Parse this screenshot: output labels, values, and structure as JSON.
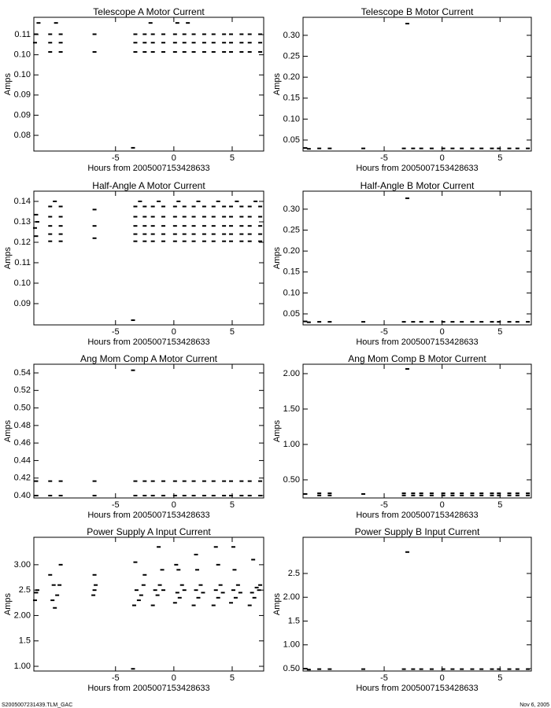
{
  "chart_data": [
    {
      "type": "scatter",
      "title": "Telescope A Motor Current",
      "xlabel": "Hours from 2005007153428633",
      "ylabel": "Amps",
      "color": "#000000",
      "xlim": [
        -12,
        7.7
      ],
      "xticks": [
        -5,
        0,
        5
      ],
      "ylim": [
        0.0811,
        0.1143
      ],
      "yticks": [
        0.11,
        {
          "value": 0.105,
          "label": "0.10"
        },
        {
          "value": 0.1,
          "label": "0.10"
        },
        {
          "value": 0.095,
          "label": "0.09"
        },
        0.09,
        {
          "value": 0.085,
          "label": "0.08"
        }
      ],
      "x": [
        -10.6,
        -9.7,
        -3.3,
        -2.5,
        -1.8,
        -0.9,
        0.1,
        0.9,
        1.7,
        2.6,
        3.4,
        4.3,
        4.9,
        5.8,
        6.5,
        7.4,
        -10.6,
        -9.7,
        -3.3,
        -2.5,
        -1.8,
        -0.9,
        0.1,
        0.9,
        1.7,
        2.6,
        3.4,
        4.3,
        4.9,
        5.8,
        6.5,
        7.4,
        -10.6,
        -9.7,
        -3.3,
        -2.5,
        -1.8,
        -0.9,
        0.1,
        0.9,
        1.7,
        2.6,
        3.4,
        4.3,
        4.9,
        5.8,
        6.5,
        7.4,
        -11.8,
        -11.6,
        -11.9,
        -6.8,
        -6.8,
        -3.5,
        -2.0,
        0.3,
        1.2,
        -10.1
      ],
      "values": [
        0.1101,
        0.1101,
        0.1101,
        0.1101,
        0.1101,
        0.1101,
        0.1101,
        0.1101,
        0.1101,
        0.1101,
        0.1101,
        0.1101,
        0.1101,
        0.1101,
        0.1101,
        0.1101,
        0.108,
        0.108,
        0.108,
        0.108,
        0.108,
        0.108,
        0.108,
        0.108,
        0.108,
        0.108,
        0.108,
        0.108,
        0.108,
        0.108,
        0.108,
        0.108,
        0.1057,
        0.1057,
        0.1057,
        0.1057,
        0.1057,
        0.1057,
        0.1057,
        0.1057,
        0.1057,
        0.1057,
        0.1057,
        0.1057,
        0.1057,
        0.1057,
        0.1057,
        0.1057,
        0.1101,
        0.1129,
        0.108,
        0.1101,
        0.1057,
        0.0819,
        0.1129,
        0.1129,
        0.1129,
        0.1129
      ]
    },
    {
      "type": "scatter",
      "title": "Telescope B Motor Current",
      "xlabel": "Hours from 2005007153428633",
      "ylabel": "Amps",
      "color": "#000000",
      "xlim": [
        -12,
        7.7
      ],
      "xticks": [
        -5,
        0,
        5
      ],
      "ylim": [
        0.0237,
        0.343
      ],
      "yticks": [
        {
          "value": 0.3,
          "label": "0.30"
        },
        0.25,
        {
          "value": 0.2,
          "label": "0.20"
        },
        0.15,
        {
          "value": 0.1,
          "label": "0.10"
        },
        0.05
      ],
      "x": [
        -10.6,
        -9.7,
        -3.3,
        -2.5,
        -1.8,
        -0.9,
        0.1,
        0.9,
        1.7,
        2.6,
        3.4,
        4.3,
        4.9,
        5.8,
        6.5,
        7.4,
        -11.8,
        -11.5,
        -6.8,
        -3.0
      ],
      "values": [
        0.03,
        0.03,
        0.03,
        0.03,
        0.03,
        0.03,
        0.03,
        0.03,
        0.03,
        0.03,
        0.03,
        0.03,
        0.03,
        0.03,
        0.03,
        0.03,
        0.031,
        0.029,
        0.03,
        0.328
      ]
    },
    {
      "type": "scatter",
      "title": "Half-Angle A Motor Current",
      "xlabel": "Hours from 2005007153428633",
      "ylabel": "Amps",
      "color": "#000000",
      "xlim": [
        -12,
        7.7
      ],
      "xticks": [
        -5,
        0,
        5
      ],
      "ylim": [
        0.0796,
        0.145
      ],
      "yticks": [
        0.14,
        0.13,
        0.12,
        0.11,
        {
          "value": 0.1,
          "label": "0.10"
        },
        0.09
      ],
      "x": [
        -10.6,
        -9.7,
        -3.3,
        -2.5,
        -1.8,
        -0.9,
        0.1,
        0.9,
        1.7,
        2.6,
        3.4,
        4.3,
        4.9,
        5.8,
        6.5,
        7.4,
        -10.6,
        -9.7,
        -3.3,
        -2.5,
        -1.8,
        -0.9,
        0.1,
        0.9,
        1.7,
        2.6,
        3.4,
        4.3,
        4.9,
        5.8,
        6.5,
        7.4,
        -10.6,
        -9.7,
        -3.3,
        -2.5,
        -1.8,
        -0.9,
        0.1,
        0.9,
        1.7,
        2.6,
        3.4,
        4.3,
        4.9,
        5.8,
        6.5,
        7.4,
        -10.6,
        -9.7,
        -3.3,
        -2.5,
        -1.8,
        -0.9,
        0.1,
        0.9,
        1.7,
        2.6,
        3.4,
        4.3,
        4.9,
        5.8,
        6.5,
        7.4,
        -10.6,
        -9.7,
        -3.3,
        -2.5,
        -1.8,
        -0.9,
        0.1,
        0.9,
        1.7,
        2.6,
        3.4,
        4.3,
        4.9,
        5.8,
        6.5,
        7.4,
        -11.9,
        -11.8,
        -11.7,
        -11.8,
        -10.2,
        -6.8,
        -6.8,
        -6.8,
        -3.5,
        -2.9,
        -1.3,
        0.4,
        2.1,
        3.8,
        5.4,
        7.0
      ],
      "values": [
        0.1375,
        0.1375,
        0.1375,
        0.1375,
        0.1375,
        0.1375,
        0.1375,
        0.1375,
        0.1375,
        0.1375,
        0.1375,
        0.1375,
        0.1375,
        0.1375,
        0.1375,
        0.1375,
        0.1325,
        0.1325,
        0.1325,
        0.1325,
        0.1325,
        0.1325,
        0.1325,
        0.1325,
        0.1325,
        0.1325,
        0.1325,
        0.1325,
        0.1325,
        0.1325,
        0.1325,
        0.1325,
        0.128,
        0.128,
        0.128,
        0.128,
        0.128,
        0.128,
        0.128,
        0.128,
        0.128,
        0.128,
        0.128,
        0.128,
        0.128,
        0.128,
        0.128,
        0.128,
        0.124,
        0.124,
        0.124,
        0.124,
        0.124,
        0.124,
        0.124,
        0.124,
        0.124,
        0.124,
        0.124,
        0.124,
        0.124,
        0.124,
        0.124,
        0.124,
        0.1205,
        0.1205,
        0.1205,
        0.1205,
        0.1205,
        0.1205,
        0.1205,
        0.1205,
        0.1205,
        0.1205,
        0.1205,
        0.1205,
        0.1205,
        0.1205,
        0.1205,
        0.1205,
        0.127,
        0.123,
        0.13,
        0.1335,
        0.14,
        0.136,
        0.128,
        0.122,
        0.0819,
        0.14,
        0.14,
        0.14,
        0.14,
        0.14,
        0.14,
        0.14
      ]
    },
    {
      "type": "scatter",
      "title": "Half-Angle B Motor Current",
      "xlabel": "Hours from 2005007153428633",
      "ylabel": "Amps",
      "color": "#000000",
      "xlim": [
        -12,
        7.7
      ],
      "xticks": [
        -5,
        0,
        5
      ],
      "ylim": [
        0.0237,
        0.343
      ],
      "yticks": [
        {
          "value": 0.3,
          "label": "0.30"
        },
        0.25,
        {
          "value": 0.2,
          "label": "0.20"
        },
        0.15,
        {
          "value": 0.1,
          "label": "0.10"
        },
        0.05
      ],
      "x": [
        -10.6,
        -9.7,
        -3.3,
        -2.5,
        -1.8,
        -0.9,
        0.1,
        0.9,
        1.7,
        2.6,
        3.4,
        4.3,
        4.9,
        5.8,
        6.5,
        7.4,
        -11.8,
        -11.5,
        -6.8,
        -3.0
      ],
      "values": [
        0.031,
        0.031,
        0.031,
        0.031,
        0.031,
        0.031,
        0.031,
        0.031,
        0.031,
        0.031,
        0.031,
        0.031,
        0.031,
        0.031,
        0.031,
        0.031,
        0.032,
        0.03,
        0.031,
        0.326
      ]
    },
    {
      "type": "scatter",
      "title": "Ang Mom Comp A Motor Current",
      "xlabel": "Hours from 2005007153428633",
      "ylabel": "Amps",
      "color": "#000000",
      "xlim": [
        -12,
        7.7
      ],
      "xticks": [
        -5,
        0,
        5
      ],
      "ylim": [
        0.3973,
        0.5499
      ],
      "yticks": [
        0.54,
        0.52,
        {
          "value": 0.5,
          "label": "0.50"
        },
        0.48,
        0.46,
        0.44,
        0.42,
        {
          "value": 0.4,
          "label": "0.40"
        }
      ],
      "x": [
        -10.6,
        -9.7,
        -3.3,
        -2.5,
        -1.8,
        -0.9,
        0.1,
        0.9,
        1.7,
        2.6,
        3.4,
        4.3,
        4.9,
        5.8,
        6.5,
        7.4,
        -10.6,
        -9.7,
        -3.3,
        -2.5,
        -1.8,
        -0.9,
        0.1,
        0.9,
        1.7,
        2.6,
        3.4,
        4.3,
        4.9,
        5.8,
        6.5,
        7.4,
        -11.8,
        -6.8,
        -11.8,
        -6.8,
        -3.5
      ],
      "values": [
        0.4165,
        0.4165,
        0.4165,
        0.4165,
        0.4165,
        0.4165,
        0.4165,
        0.4165,
        0.4165,
        0.4165,
        0.4165,
        0.4165,
        0.4165,
        0.4165,
        0.4165,
        0.4165,
        0.4,
        0.4,
        0.4,
        0.4,
        0.4,
        0.4,
        0.4,
        0.4,
        0.4,
        0.4,
        0.4,
        0.4,
        0.4,
        0.4,
        0.4,
        0.4,
        0.4165,
        0.4165,
        0.4,
        0.4,
        0.543
      ]
    },
    {
      "type": "scatter",
      "title": "Ang Mom Comp B Motor Current",
      "xlabel": "Hours from 2005007153428633",
      "ylabel": "Amps",
      "color": "#000000",
      "xlim": [
        -12,
        7.7
      ],
      "xticks": [
        -5,
        0,
        5
      ],
      "ylim": [
        0.244,
        2.133
      ],
      "yticks": [
        {
          "value": 2,
          "label": "2.00"
        },
        {
          "value": 1.5,
          "label": "1.50"
        },
        {
          "value": 1,
          "label": "1.00"
        },
        {
          "value": 0.5,
          "label": "0.50"
        }
      ],
      "x": [
        -10.6,
        -9.7,
        -3.3,
        -2.5,
        -1.8,
        -0.9,
        0.1,
        0.9,
        1.7,
        2.6,
        3.4,
        4.3,
        4.9,
        5.8,
        6.5,
        7.4,
        -10.6,
        -9.7,
        -3.3,
        -2.5,
        -1.8,
        -0.9,
        0.1,
        0.9,
        1.7,
        2.6,
        3.4,
        4.3,
        4.9,
        5.8,
        6.5,
        7.4,
        -11.8,
        -6.8,
        -3.0
      ],
      "values": [
        0.31,
        0.31,
        0.31,
        0.31,
        0.31,
        0.31,
        0.31,
        0.31,
        0.31,
        0.31,
        0.31,
        0.31,
        0.31,
        0.31,
        0.31,
        0.31,
        0.28,
        0.28,
        0.28,
        0.28,
        0.28,
        0.28,
        0.28,
        0.28,
        0.28,
        0.28,
        0.28,
        0.28,
        0.28,
        0.28,
        0.28,
        0.28,
        0.3,
        0.3,
        2.067
      ]
    },
    {
      "type": "scatter",
      "title": "Power Supply A Input Current",
      "xlabel": "Hours from 2005007153428633",
      "ylabel": "Amps",
      "color": "#000000",
      "xlim": [
        -12,
        7.7
      ],
      "xticks": [
        -5,
        0,
        5
      ],
      "ylim": [
        0.907,
        3.54
      ],
      "yticks": [
        {
          "value": 3,
          "label": "3.00"
        },
        2.5,
        {
          "value": 2,
          "label": "2.00"
        },
        1.5,
        {
          "value": 1,
          "label": "1.00"
        }
      ],
      "x": [
        -11.9,
        -11.8,
        -11.7,
        -10.6,
        -10.4,
        -10.2,
        -10.0,
        -9.8,
        -9.7,
        -10.3,
        -6.9,
        -6.8,
        -6.7,
        -6.8,
        -3.4,
        -3.2,
        -3.0,
        -2.8,
        -2.6,
        -2.5,
        -3.3,
        -3.5,
        -1.8,
        -1.6,
        -1.4,
        -1.2,
        -1.0,
        -1.3,
        -0.9,
        0.1,
        0.3,
        0.5,
        0.7,
        0.9,
        0.2,
        0.4,
        1.7,
        1.9,
        2.1,
        2.3,
        2.5,
        1.9,
        2.0,
        3.4,
        3.6,
        3.8,
        4.0,
        4.2,
        3.6,
        3.8,
        4.9,
        5.1,
        5.3,
        5.5,
        5.7,
        5.1,
        5.2,
        6.5,
        6.7,
        6.9,
        7.1,
        7.3,
        6.8,
        7.4
      ],
      "values": [
        2.3,
        2.45,
        2.5,
        2.8,
        2.3,
        2.15,
        2.4,
        2.6,
        3.0,
        2.6,
        2.4,
        2.8,
        2.6,
        2.5,
        2.2,
        2.5,
        2.3,
        2.4,
        2.6,
        2.8,
        3.05,
        0.95,
        2.2,
        2.5,
        2.4,
        2.6,
        2.9,
        3.35,
        2.5,
        2.25,
        2.45,
        2.35,
        2.6,
        2.5,
        3.0,
        2.9,
        2.2,
        2.5,
        2.35,
        2.6,
        2.45,
        3.2,
        2.9,
        2.2,
        2.5,
        2.35,
        2.6,
        2.45,
        3.35,
        3.0,
        2.25,
        2.5,
        2.35,
        2.6,
        2.45,
        3.35,
        2.9,
        2.2,
        2.45,
        2.35,
        2.55,
        2.5,
        3.1,
        2.6
      ]
    },
    {
      "type": "scatter",
      "title": "Power Supply B Input Current",
      "xlabel": "Hours from 2005007153428633",
      "ylabel": "Amps",
      "color": "#000000",
      "xlim": [
        -12,
        7.7
      ],
      "xticks": [
        -5,
        0,
        5
      ],
      "ylim": [
        0.45,
        3.26
      ],
      "yticks": [
        2.5,
        {
          "value": 2,
          "label": "2.00"
        },
        1.5,
        {
          "value": 1,
          "label": "1.00"
        },
        {
          "value": 0.5,
          "label": "0.50"
        }
      ],
      "x": [
        -10.6,
        -9.7,
        -3.3,
        -2.5,
        -1.8,
        -0.9,
        0.1,
        0.9,
        1.7,
        2.6,
        3.4,
        4.3,
        4.9,
        5.8,
        6.5,
        7.4,
        -11.8,
        -11.5,
        -6.8,
        -3.0
      ],
      "values": [
        0.49,
        0.49,
        0.49,
        0.49,
        0.49,
        0.49,
        0.49,
        0.49,
        0.49,
        0.49,
        0.49,
        0.49,
        0.49,
        0.49,
        0.49,
        0.49,
        0.5,
        0.48,
        0.49,
        2.95
      ]
    }
  ],
  "footer": {
    "left": "S2005007231439.TLM_GAC",
    "right": "Nov  6, 2005"
  }
}
